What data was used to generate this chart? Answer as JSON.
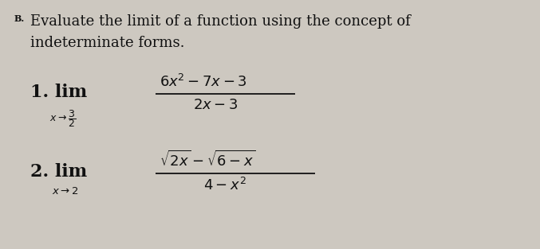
{
  "background_color": "#cdc8c0",
  "text_color": "#111111",
  "figsize": [
    6.77,
    3.13
  ],
  "dpi": 100,
  "label_B_text": "B.",
  "header1": "Evaluate the limit of a function using the concept of",
  "header2": "indeterminate forms.",
  "item1_num": "1",
  "item1_num_text": "$6x^2-7x-3$",
  "item1_den_text": "$2x-3$",
  "item1_sub": "$x\\\\rightarrow\\\\dfrac{3}{2}$",
  "item2_num_text": "$\\\\sqrt{2x}-\\\\sqrt{6-x}$",
  "item2_den_text": "$4-x^2$",
  "item2_sub": "$x\\\\rightarrow 2$"
}
